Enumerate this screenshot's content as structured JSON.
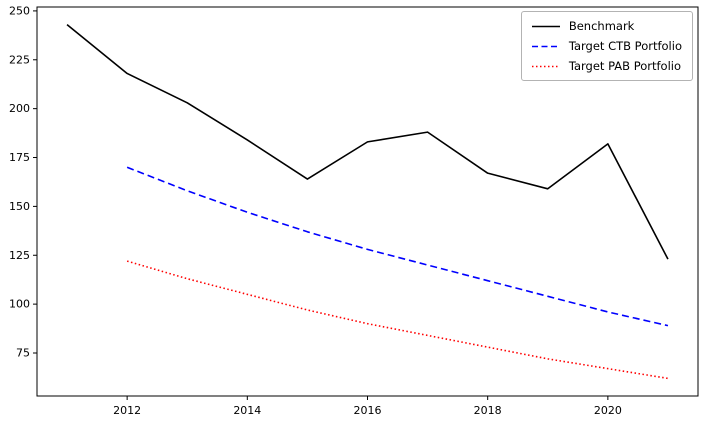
{
  "chart_data": {
    "type": "line",
    "title": "",
    "xlabel": "",
    "ylabel": "",
    "xlim": [
      2010.5,
      2021.5
    ],
    "ylim": [
      53,
      252
    ],
    "xticks": [
      2012,
      2014,
      2016,
      2018,
      2020
    ],
    "yticks": [
      75,
      100,
      125,
      150,
      175,
      200,
      225,
      250
    ],
    "grid": false,
    "legend_position": "upper right",
    "series": [
      {
        "name": "Benchmark",
        "color": "#000000",
        "style": "solid",
        "x": [
          2011,
          2012,
          2013,
          2014,
          2015,
          2016,
          2017,
          2018,
          2019,
          2020,
          2021
        ],
        "y": [
          243,
          218,
          203,
          184,
          164,
          183,
          188,
          167,
          159,
          182,
          123
        ]
      },
      {
        "name": "Target CTB Portfolio",
        "color": "#0000ff",
        "style": "dashed",
        "x": [
          2012,
          2013,
          2014,
          2015,
          2016,
          2017,
          2018,
          2019,
          2020,
          2021
        ],
        "y": [
          170,
          158,
          147,
          137,
          128,
          120,
          112,
          104,
          96,
          89
        ]
      },
      {
        "name": "Target PAB Portfolio",
        "color": "#ff0000",
        "style": "dotted",
        "x": [
          2012,
          2013,
          2014,
          2015,
          2016,
          2017,
          2018,
          2019,
          2020,
          2021
        ],
        "y": [
          122,
          113,
          105,
          97,
          90,
          84,
          78,
          72,
          67,
          62
        ]
      }
    ]
  }
}
